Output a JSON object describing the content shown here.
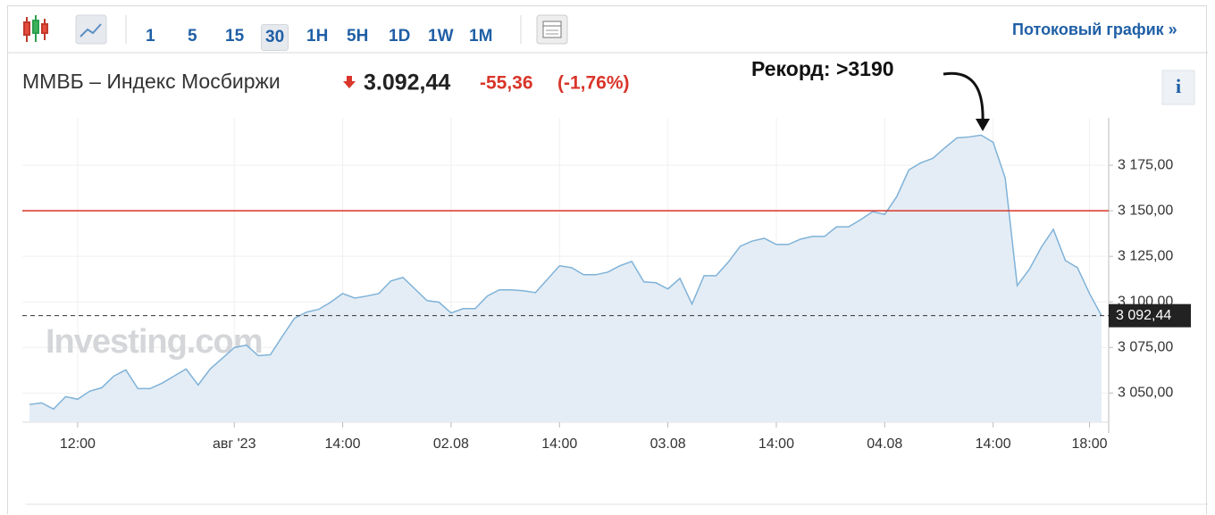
{
  "toolbar": {
    "intervals": [
      "1",
      "5",
      "15",
      "30",
      "1H",
      "5H",
      "1D",
      "1W",
      "1M"
    ],
    "active_interval": 3,
    "streaming_link": "Потоковый график »"
  },
  "header": {
    "name": "ММВБ – Индекс Мосбиржи",
    "price": "3.092,44",
    "change": "-55,36",
    "change_pct": "(-1,76%)",
    "info_button": "i"
  },
  "chart_data": {
    "type": "area",
    "color": "#7fb2d8",
    "fill": "#e4edf5",
    "watermark": "Investing.com",
    "annotation": "Рекорд: >3190",
    "reference_line": {
      "value": 3150,
      "color": "#d9352a"
    },
    "last_price": {
      "value": 3092.44,
      "label": "3 092,44"
    },
    "grid": true,
    "ylim": [
      3034,
      3201
    ],
    "yticks": [
      {
        "value": 3050,
        "label": "3 050,00"
      },
      {
        "value": 3075,
        "label": "3 075,00"
      },
      {
        "value": 3100,
        "label": "3 100,00"
      },
      {
        "value": 3125,
        "label": "3 125,00"
      },
      {
        "value": 3150,
        "label": "3 150,00"
      },
      {
        "value": 3175,
        "label": "3 175,00"
      }
    ],
    "categories": [
      null,
      null,
      null,
      null,
      "12:00",
      null,
      null,
      null,
      null,
      null,
      null,
      null,
      null,
      null,
      null,
      null,
      null,
      "авг '23",
      null,
      null,
      null,
      null,
      null,
      null,
      null,
      null,
      "14:00",
      null,
      null,
      null,
      null,
      null,
      null,
      null,
      null,
      "02.08",
      null,
      null,
      null,
      null,
      null,
      null,
      null,
      null,
      "14:00",
      null,
      null,
      null,
      null,
      null,
      null,
      null,
      null,
      "03.08",
      null,
      null,
      null,
      null,
      null,
      null,
      null,
      null,
      "14:00",
      null,
      null,
      null,
      null,
      null,
      null,
      null,
      null,
      "04.08",
      null,
      null,
      null,
      null,
      null,
      null,
      null,
      null,
      "14:00",
      null,
      null,
      null,
      null,
      null,
      null,
      null,
      "18:00",
      null
    ],
    "values": [
      3043.7,
      3044.6,
      3041.2,
      3048,
      3046.6,
      3051,
      3052.9,
      3059.3,
      3062.7,
      3052.4,
      3052.4,
      3055.4,
      3059.3,
      3063.2,
      3054.4,
      3063.2,
      3069,
      3074.9,
      3076.3,
      3070.5,
      3071,
      3081.2,
      3091,
      3094.4,
      3095.9,
      3099.8,
      3104.6,
      3102.1,
      3103.2,
      3104.6,
      3111.5,
      3113.4,
      3107.1,
      3100.7,
      3099.8,
      3093.9,
      3096.3,
      3096.3,
      3103.2,
      3106.6,
      3106.6,
      3106.1,
      3105.1,
      3112.4,
      3119.8,
      3118.8,
      3114.9,
      3114.9,
      3116.3,
      3119.8,
      3122.2,
      3111,
      3110.5,
      3107.1,
      3112.9,
      3098.8,
      3114.4,
      3114.4,
      3121.7,
      3130.5,
      3133.4,
      3134.9,
      3131.5,
      3131.5,
      3134.4,
      3135.9,
      3135.9,
      3141.2,
      3141.2,
      3145.1,
      3149.5,
      3148,
      3157.8,
      3172.4,
      3176.3,
      3178.8,
      3184.6,
      3190,
      3190.5,
      3191.5,
      3187.6,
      3168,
      3109,
      3117.8,
      3130,
      3139.8,
      3122.7,
      3118.8,
      3104.6,
      3092.44
    ]
  }
}
